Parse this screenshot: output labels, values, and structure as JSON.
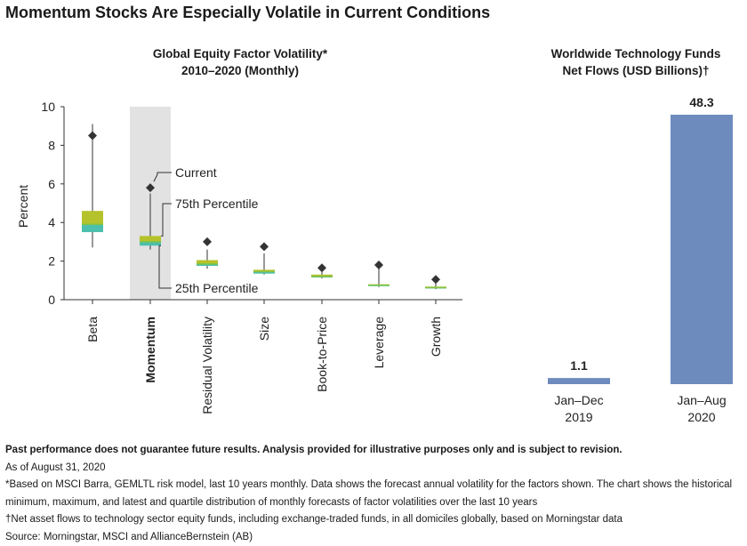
{
  "title": "Momentum Stocks Are Especially Volatile in Current Conditions",
  "chart_data": [
    {
      "type": "box",
      "title": "Global Equity Factor Volatility*",
      "subtitle": "2010–2020 (Monthly)",
      "ylabel": "Percent",
      "ylim": [
        0,
        10
      ],
      "yticks": [
        0,
        2,
        4,
        6,
        8,
        10
      ],
      "highlight": "Momentum",
      "annotations": [
        "Current",
        "75th Percentile",
        "25th Percentile"
      ],
      "colors": {
        "upper_box": "#b5c22b",
        "lower_box": "#4cbfae",
        "median": "#7ec44a",
        "highlight_band": "#e2e2e2",
        "marker": "#333333"
      },
      "factors": [
        {
          "name": "Beta",
          "min": 2.7,
          "q1": 3.5,
          "median": 3.9,
          "q3": 4.6,
          "max": 9.1,
          "current": 8.5
        },
        {
          "name": "Momentum",
          "min": 2.6,
          "q1": 2.8,
          "median": 3.0,
          "q3": 3.3,
          "max": 5.5,
          "current": 5.8
        },
        {
          "name": "Residual Volatility",
          "min": 1.6,
          "q1": 1.75,
          "median": 1.85,
          "q3": 2.05,
          "max": 2.6,
          "current": 3.0
        },
        {
          "name": "Size",
          "min": 1.3,
          "q1": 1.35,
          "median": 1.45,
          "q3": 1.55,
          "max": 2.4,
          "current": 2.75
        },
        {
          "name": "Book-to-Price",
          "min": 1.1,
          "q1": 1.15,
          "median": 1.2,
          "q3": 1.3,
          "max": 1.5,
          "current": 1.65
        },
        {
          "name": "Leverage",
          "min": 0.65,
          "q1": 0.7,
          "median": 0.75,
          "q3": 0.8,
          "max": 1.6,
          "current": 1.8
        },
        {
          "name": "Growth",
          "min": 0.55,
          "q1": 0.58,
          "median": 0.62,
          "q3": 0.68,
          "max": 0.85,
          "current": 1.05
        }
      ]
    },
    {
      "type": "bar",
      "title": "Worldwide Technology Funds",
      "subtitle": "Net Flows (USD Billions)†",
      "categories": [
        [
          "Jan–Dec",
          "2019"
        ],
        [
          "Jan–Aug",
          "2020"
        ]
      ],
      "values": [
        1.1,
        48.3
      ],
      "value_labels": [
        "1.1",
        "48.3"
      ],
      "ylim": [
        0,
        48.3
      ],
      "color": "#6e8bbd"
    }
  ],
  "notes": {
    "disclaimer": "Past performance does not guarantee future results. Analysis provided for illustrative purposes only and is subject to revision.",
    "as_of": "As of August 31, 2020",
    "footnote1_line1": "*Based on MSCI Barra, GEMLTL risk model, last 10 years monthly. Data shows the forecast annual volatility for the factors shown. The chart shows the historical",
    "footnote1_line2": "minimum, maximum, and latest and quartile distribution of monthly forecasts of factor volatilities over the last 10 years",
    "footnote2": "†Net asset flows to technology sector equity funds, including exchange-traded funds, in all domiciles globally, based on Morningstar data",
    "source": "Source: Morningstar, MSCI and AllianceBernstein (AB)"
  }
}
